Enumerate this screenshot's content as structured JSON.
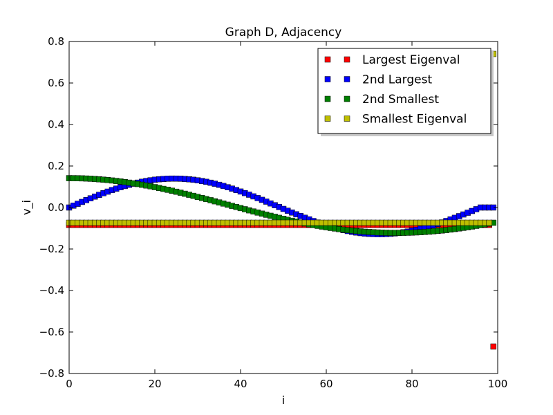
{
  "chart_data": {
    "type": "scatter",
    "title": "Graph D, Adjacency",
    "xlabel": "i",
    "ylabel": "v_i",
    "xlim": [
      0,
      100
    ],
    "ylim": [
      -0.8,
      0.8
    ],
    "xticks": [
      0,
      20,
      40,
      60,
      80,
      100
    ],
    "yticks": [
      -0.8,
      -0.6,
      -0.4,
      -0.2,
      0.0,
      0.2,
      0.4,
      0.6,
      0.8
    ],
    "xtick_labels": [
      "0",
      "20",
      "40",
      "60",
      "80",
      "100"
    ],
    "ytick_labels": [
      "−0.8",
      "−0.6",
      "−0.4",
      "−0.2",
      "0.0",
      "0.2",
      "0.4",
      "0.6",
      "0.8"
    ],
    "grid": false,
    "legend_position": "top-right",
    "x": [
      0,
      1,
      2,
      3,
      4,
      5,
      6,
      7,
      8,
      9,
      10,
      11,
      12,
      13,
      14,
      15,
      16,
      17,
      18,
      19,
      20,
      21,
      22,
      23,
      24,
      25,
      26,
      27,
      28,
      29,
      30,
      31,
      32,
      33,
      34,
      35,
      36,
      37,
      38,
      39,
      40,
      41,
      42,
      43,
      44,
      45,
      46,
      47,
      48,
      49,
      50,
      51,
      52,
      53,
      54,
      55,
      56,
      57,
      58,
      59,
      60,
      61,
      62,
      63,
      64,
      65,
      66,
      67,
      68,
      69,
      70,
      71,
      72,
      73,
      74,
      75,
      76,
      77,
      78,
      79,
      80,
      81,
      82,
      83,
      84,
      85,
      86,
      87,
      88,
      89,
      90,
      91,
      92,
      93,
      94,
      95,
      96,
      97,
      98,
      99
    ],
    "series": [
      {
        "name": "Largest Eigenval",
        "color": "#ff0000",
        "values": [
          -0.0841,
          -0.0841,
          -0.0841,
          -0.0841,
          -0.0841,
          -0.0841,
          -0.0841,
          -0.0841,
          -0.0841,
          -0.0841,
          -0.0841,
          -0.0841,
          -0.0841,
          -0.0841,
          -0.0841,
          -0.0841,
          -0.0841,
          -0.0841,
          -0.0841,
          -0.0841,
          -0.0841,
          -0.0841,
          -0.0841,
          -0.0841,
          -0.0841,
          -0.0841,
          -0.0841,
          -0.0841,
          -0.0841,
          -0.0841,
          -0.0841,
          -0.0841,
          -0.0841,
          -0.0841,
          -0.0841,
          -0.0841,
          -0.0841,
          -0.0841,
          -0.0841,
          -0.0841,
          -0.0841,
          -0.0841,
          -0.0841,
          -0.0841,
          -0.0841,
          -0.0841,
          -0.0841,
          -0.0841,
          -0.0841,
          -0.0841,
          -0.0841,
          -0.0841,
          -0.0841,
          -0.0841,
          -0.0841,
          -0.0841,
          -0.0841,
          -0.0841,
          -0.0841,
          -0.0841,
          -0.0841,
          -0.0841,
          -0.0841,
          -0.0841,
          -0.0841,
          -0.0841,
          -0.0841,
          -0.0841,
          -0.0841,
          -0.0841,
          -0.0841,
          -0.0841,
          -0.0841,
          -0.0841,
          -0.0841,
          -0.0841,
          -0.0841,
          -0.0841,
          -0.0841,
          -0.0841,
          -0.0841,
          -0.0841,
          -0.0841,
          -0.0841,
          -0.0841,
          -0.0841,
          -0.0841,
          -0.0841,
          -0.0841,
          -0.0841,
          -0.0841,
          -0.0841,
          -0.0841,
          -0.0841,
          -0.0841,
          -0.0841,
          -0.0841,
          -0.0841,
          -0.0841,
          -0.67
        ]
      },
      {
        "name": "2nd Largest",
        "color": "#0000ff",
        "values": [
          0.0,
          0.009,
          0.0179,
          0.0268,
          0.0356,
          0.0442,
          0.0527,
          0.0609,
          0.0689,
          0.0765,
          0.0839,
          0.0909,
          0.0975,
          0.1037,
          0.1095,
          0.1148,
          0.1197,
          0.124,
          0.1278,
          0.1311,
          0.1339,
          0.1361,
          0.1377,
          0.1388,
          0.1394,
          0.1393,
          0.1388,
          0.1376,
          0.1359,
          0.1337,
          0.1309,
          0.1276,
          0.1238,
          0.1195,
          0.1147,
          0.1095,
          0.1038,
          0.0977,
          0.0911,
          0.0843,
          0.077,
          0.0695,
          0.0617,
          0.0536,
          0.0453,
          0.0369,
          0.0283,
          0.0196,
          0.0109,
          0.0021,
          -0.0067,
          -0.0155,
          -0.0242,
          -0.0328,
          -0.0412,
          -0.0494,
          -0.0574,
          -0.0652,
          -0.0726,
          -0.0797,
          -0.0864,
          -0.0927,
          -0.0986,
          -0.104,
          -0.1089,
          -0.1133,
          -0.1172,
          -0.1205,
          -0.1233,
          -0.1255,
          -0.1271,
          -0.1281,
          -0.1286,
          -0.1285,
          -0.1278,
          -0.1266,
          -0.1248,
          -0.1224,
          -0.1195,
          -0.1161,
          -0.1122,
          -0.1078,
          -0.1029,
          -0.0976,
          -0.0918,
          -0.0857,
          -0.0791,
          -0.0722,
          -0.065,
          -0.0575,
          -0.0497,
          -0.0417,
          -0.0335,
          -0.0252,
          -0.0167,
          -0.0082,
          0.0,
          0.0,
          0.0,
          0.0
        ]
      },
      {
        "name": "2nd Smallest",
        "color": "#008000",
        "values": [
          0.1414,
          0.1413,
          0.141,
          0.1404,
          0.1397,
          0.1386,
          0.1374,
          0.1359,
          0.1342,
          0.1323,
          0.1302,
          0.1279,
          0.1253,
          0.1226,
          0.1197,
          0.1165,
          0.1132,
          0.1097,
          0.1061,
          0.1022,
          0.0982,
          0.0941,
          0.0898,
          0.0854,
          0.0808,
          0.0761,
          0.0713,
          0.0664,
          0.0614,
          0.0563,
          0.0511,
          0.0459,
          0.0406,
          0.0352,
          0.0298,
          0.0244,
          0.019,
          0.0135,
          0.008,
          0.0026,
          -0.0029,
          -0.0083,
          -0.0137,
          -0.0191,
          -0.0244,
          -0.0296,
          -0.0348,
          -0.0399,
          -0.0449,
          -0.0498,
          -0.0546,
          -0.0593,
          -0.0638,
          -0.0683,
          -0.0726,
          -0.0767,
          -0.0807,
          -0.0846,
          -0.0882,
          -0.0918,
          -0.0951,
          -0.0983,
          -0.1013,
          -0.1041,
          -0.1067,
          -0.1091,
          -0.1113,
          -0.1133,
          -0.1151,
          -0.1167,
          -0.1181,
          -0.1193,
          -0.1203,
          -0.1211,
          -0.1217,
          -0.1221,
          -0.1222,
          -0.1222,
          -0.122,
          -0.1215,
          -0.1209,
          -0.12,
          -0.119,
          -0.1177,
          -0.1163,
          -0.1146,
          -0.1128,
          -0.1108,
          -0.1086,
          -0.1062,
          -0.1036,
          -0.1009,
          -0.098,
          -0.0949,
          -0.0917,
          -0.0883,
          -0.0848,
          -0.0811,
          -0.0773,
          -0.0734
        ]
      },
      {
        "name": "Smallest Eigenval",
        "color": "#bfbf00",
        "values": [
          -0.0735,
          -0.0735,
          -0.0735,
          -0.0735,
          -0.0735,
          -0.0735,
          -0.0735,
          -0.0735,
          -0.0735,
          -0.0735,
          -0.0735,
          -0.0735,
          -0.0735,
          -0.0735,
          -0.0735,
          -0.0735,
          -0.0735,
          -0.0735,
          -0.0735,
          -0.0735,
          -0.0735,
          -0.0735,
          -0.0735,
          -0.0735,
          -0.0735,
          -0.0735,
          -0.0735,
          -0.0735,
          -0.0735,
          -0.0735,
          -0.0735,
          -0.0735,
          -0.0735,
          -0.0735,
          -0.0735,
          -0.0735,
          -0.0735,
          -0.0735,
          -0.0735,
          -0.0735,
          -0.0735,
          -0.0735,
          -0.0735,
          -0.0735,
          -0.0735,
          -0.0735,
          -0.0735,
          -0.0735,
          -0.0735,
          -0.0735,
          -0.0735,
          -0.0735,
          -0.0735,
          -0.0735,
          -0.0735,
          -0.0735,
          -0.0735,
          -0.0735,
          -0.0735,
          -0.0735,
          -0.0735,
          -0.0735,
          -0.0735,
          -0.0735,
          -0.0735,
          -0.0735,
          -0.0735,
          -0.0735,
          -0.0735,
          -0.0735,
          -0.0735,
          -0.0735,
          -0.0735,
          -0.0735,
          -0.0735,
          -0.0735,
          -0.0735,
          -0.0735,
          -0.0735,
          -0.0735,
          -0.0735,
          -0.0735,
          -0.0735,
          -0.0735,
          -0.0735,
          -0.0735,
          -0.0735,
          -0.0735,
          -0.0735,
          -0.0735,
          -0.0735,
          -0.0735,
          -0.0735,
          -0.0735,
          -0.0735,
          -0.0735,
          -0.0735,
          -0.0735,
          -0.0735,
          0.74
        ]
      }
    ]
  }
}
